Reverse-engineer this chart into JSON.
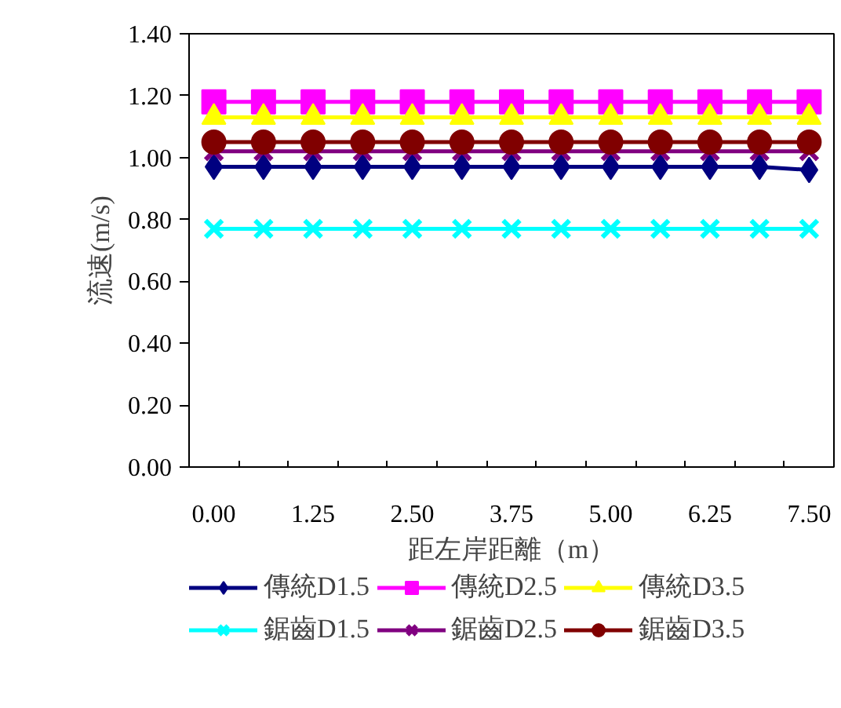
{
  "chart_data": {
    "type": "line",
    "xlabel": "距左岸距離（m）",
    "ylabel": "流速(m/s)",
    "categories": [
      "0.00",
      null,
      "1.25",
      null,
      "2.50",
      null,
      "3.75",
      null,
      "5.00",
      null,
      "6.25",
      null,
      "7.50"
    ],
    "ylim": [
      0,
      1.4
    ],
    "yticks": [
      {
        "value": 0,
        "label": "0.00"
      },
      {
        "value": 0.2,
        "label": "0.20"
      },
      {
        "value": 0.4,
        "label": "0.40"
      },
      {
        "value": 0.6,
        "label": "0.60"
      },
      {
        "value": 0.8,
        "label": "0.80"
      },
      {
        "value": 1.0,
        "label": "1.00"
      },
      {
        "value": 1.2,
        "label": "1.20"
      },
      {
        "value": 1.4,
        "label": "1.40"
      }
    ],
    "grid": false,
    "legend": "bottom",
    "line_style": "solid",
    "series": [
      {
        "name": "傳統D1.5",
        "color": "#000080",
        "marker": "diamond",
        "values": [
          0.97,
          0.97,
          0.97,
          0.97,
          0.97,
          0.97,
          0.97,
          0.97,
          0.97,
          0.97,
          0.97,
          0.97,
          0.96
        ]
      },
      {
        "name": "傳統D2.5",
        "color": "#ff00ff",
        "marker": "square",
        "values": [
          1.18,
          1.18,
          1.18,
          1.18,
          1.18,
          1.18,
          1.18,
          1.18,
          1.18,
          1.18,
          1.18,
          1.18,
          1.18
        ]
      },
      {
        "name": "傳統D3.5",
        "color": "#ffff00",
        "marker": "triangle",
        "values": [
          1.13,
          1.13,
          1.13,
          1.13,
          1.13,
          1.13,
          1.13,
          1.13,
          1.13,
          1.13,
          1.13,
          1.13,
          1.13
        ]
      },
      {
        "name": "鋸齒D1.5",
        "color": "#00ffff",
        "marker": "cross",
        "values": [
          0.77,
          0.77,
          0.77,
          0.77,
          0.77,
          0.77,
          0.77,
          0.77,
          0.77,
          0.77,
          0.77,
          0.77,
          0.77
        ]
      },
      {
        "name": "鋸齒D2.5",
        "color": "#800080",
        "marker": "cross",
        "values": [
          1.02,
          1.02,
          1.02,
          1.02,
          1.02,
          1.02,
          1.02,
          1.02,
          1.02,
          1.02,
          1.02,
          1.02,
          1.02
        ]
      },
      {
        "name": "鋸齒D3.5",
        "color": "#800000",
        "marker": "circle",
        "values": [
          1.05,
          1.05,
          1.05,
          1.05,
          1.05,
          1.05,
          1.05,
          1.05,
          1.05,
          1.05,
          1.05,
          1.05,
          1.05
        ]
      }
    ]
  }
}
